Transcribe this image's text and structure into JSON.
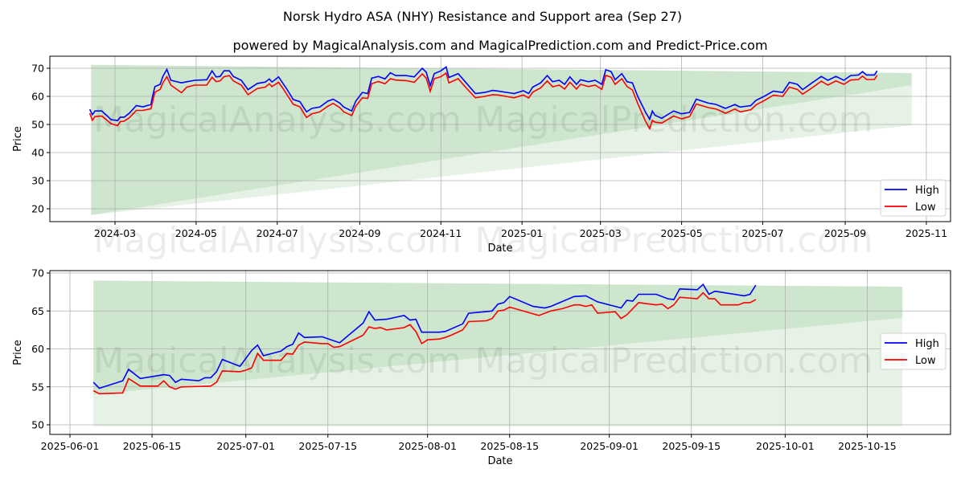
{
  "title": "Norsk Hydro ASA (NHY) Resistance and Support area (Sep 27)",
  "subtitle": "powered by MagicalAnalysis.com and MagicalPrediction.com and Predict-Price.com",
  "watermarks": [
    "MagicalAnalysis.com",
    "MagicalPrediction.com"
  ],
  "colors": {
    "high": "#0000ff",
    "low": "#ff0000",
    "band": "#008000"
  },
  "chart_data": [
    {
      "type": "line",
      "xlabel": "Date",
      "ylabel": "Price",
      "ylim": [
        15.4,
        74.3
      ],
      "xlim": [
        "2024-01-12",
        "2025-12-06"
      ],
      "yticks": [
        20,
        30,
        40,
        50,
        60,
        70
      ],
      "xticks": [
        "2024-03",
        "2024-05",
        "2024-07",
        "2024-09",
        "2024-11",
        "2025-01",
        "2025-03",
        "2025-05",
        "2025-07",
        "2025-09",
        "2025-11"
      ],
      "grid": true,
      "legend": {
        "position": "lower-right",
        "entries": [
          "High",
          "Low"
        ]
      },
      "band": {
        "start": "2024-02-12",
        "end": "2025-10-21",
        "upper": [
          71.2,
          68.3
        ],
        "mid": [
          17.8,
          64.0
        ],
        "lower": [
          17.8,
          49.7
        ]
      },
      "x": [
        "2024-02-11",
        "2024-02-13",
        "2024-02-15",
        "2024-02-20",
        "2024-02-24",
        "2024-02-27",
        "2024-03-03",
        "2024-03-05",
        "2024-03-08",
        "2024-03-12",
        "2024-03-17",
        "2024-03-22",
        "2024-03-28",
        "2024-03-29",
        "2024-03-31",
        "2024-04-04",
        "2024-04-06",
        "2024-04-09",
        "2024-04-12",
        "2024-04-20",
        "2024-04-24",
        "2024-04-30",
        "2024-05-09",
        "2024-05-13",
        "2024-05-16",
        "2024-05-19",
        "2024-05-22",
        "2024-05-26",
        "2024-05-29",
        "2024-06-04",
        "2024-06-09",
        "2024-06-16",
        "2024-06-22",
        "2024-06-25",
        "2024-06-27",
        "2024-07-02",
        "2024-07-05",
        "2024-07-08",
        "2024-07-13",
        "2024-07-18",
        "2024-07-23",
        "2024-07-27",
        "2024-08-02",
        "2024-08-08",
        "2024-08-12",
        "2024-08-17",
        "2024-08-20",
        "2024-08-26",
        "2024-08-29",
        "2024-09-03",
        "2024-09-07",
        "2024-09-10",
        "2024-09-15",
        "2024-09-20",
        "2024-09-24",
        "2024-09-28",
        "2024-10-06",
        "2024-10-12",
        "2024-10-18",
        "2024-10-21",
        "2024-10-24",
        "2024-10-27",
        "2024-11-01",
        "2024-11-05",
        "2024-11-07",
        "2024-11-14",
        "2024-11-20",
        "2024-11-27",
        "2024-12-04",
        "2024-12-10",
        "2024-12-14",
        "2024-12-26",
        "2025-01-02",
        "2025-01-06",
        "2025-01-09",
        "2025-01-15",
        "2025-01-20",
        "2025-01-24",
        "2025-01-29",
        "2025-02-02",
        "2025-02-06",
        "2025-02-11",
        "2025-02-14",
        "2025-02-20",
        "2025-02-25",
        "2025-03-02",
        "2025-03-05",
        "2025-03-09",
        "2025-03-12",
        "2025-03-17",
        "2025-03-21",
        "2025-03-25",
        "2025-03-29",
        "2025-04-04",
        "2025-04-07",
        "2025-04-09",
        "2025-04-11",
        "2025-04-16",
        "2025-04-25",
        "2025-04-28",
        "2025-05-01",
        "2025-05-07",
        "2025-05-12",
        "2025-05-21",
        "2025-05-27",
        "2025-06-03",
        "2025-06-10",
        "2025-06-14",
        "2025-06-22",
        "2025-06-26",
        "2025-07-02",
        "2025-07-09",
        "2025-07-16",
        "2025-07-21",
        "2025-07-27",
        "2025-07-31",
        "2025-08-07",
        "2025-08-14",
        "2025-08-19",
        "2025-08-25",
        "2025-08-31",
        "2025-09-05",
        "2025-09-11",
        "2025-09-14",
        "2025-09-17",
        "2025-09-23",
        "2025-09-25"
      ],
      "series": [
        {
          "name": "High",
          "values": [
            55.4,
            53.5,
            54.8,
            54.8,
            53.1,
            51.7,
            51.4,
            52.6,
            52.6,
            54.1,
            56.7,
            56.3,
            57.1,
            59.5,
            63.5,
            64.3,
            67.1,
            69.6,
            65.7,
            64.8,
            65.2,
            65.7,
            65.9,
            69.1,
            66.9,
            67.1,
            69.1,
            69.1,
            67.1,
            65.7,
            62.4,
            64.6,
            65.1,
            66.2,
            65.1,
            66.9,
            64.8,
            62.7,
            58.9,
            58.1,
            54.5,
            55.7,
            56.2,
            58.3,
            59.0,
            57.6,
            56.2,
            54.8,
            58.3,
            61.4,
            61.0,
            66.5,
            67.1,
            66.2,
            68.4,
            67.4,
            67.4,
            66.9,
            70.0,
            68.6,
            63.8,
            68.1,
            69.1,
            70.5,
            66.7,
            68.1,
            64.8,
            61.0,
            61.4,
            62.1,
            61.9,
            61.0,
            62.0,
            61.0,
            63.3,
            64.8,
            67.4,
            65.2,
            65.7,
            64.3,
            66.9,
            64.3,
            65.9,
            65.2,
            65.7,
            64.3,
            69.5,
            68.8,
            65.9,
            68.1,
            65.2,
            64.8,
            60.0,
            54.3,
            51.9,
            54.8,
            53.3,
            52.2,
            54.8,
            54.3,
            53.8,
            54.3,
            59.0,
            57.6,
            57.1,
            55.7,
            57.1,
            56.2,
            56.7,
            58.6,
            60.0,
            61.9,
            61.4,
            65.0,
            64.3,
            62.4,
            64.8,
            67.1,
            65.7,
            67.1,
            65.7,
            67.4,
            67.6,
            68.8,
            67.6,
            67.6,
            69.1
          ]
        },
        {
          "name": "Low",
          "values": [
            54.0,
            51.5,
            52.8,
            53.0,
            51.5,
            50.3,
            49.6,
            51.0,
            51.2,
            52.5,
            55.0,
            55.0,
            55.6,
            57.5,
            61.5,
            62.5,
            64.8,
            67.0,
            64.0,
            61.3,
            63.3,
            64.0,
            64.0,
            66.8,
            65.3,
            65.5,
            67.0,
            67.4,
            65.5,
            64.0,
            60.6,
            62.8,
            63.3,
            64.5,
            63.5,
            65.0,
            63.0,
            60.8,
            57.2,
            56.3,
            52.5,
            53.8,
            54.5,
            56.5,
            57.5,
            56.0,
            54.5,
            53.2,
            56.5,
            59.5,
            59.3,
            64.5,
            65.3,
            64.5,
            66.3,
            65.8,
            65.6,
            65.0,
            68.0,
            66.5,
            61.8,
            66.3,
            67.0,
            68.3,
            64.8,
            66.3,
            63.0,
            59.5,
            60.0,
            60.6,
            60.5,
            59.5,
            60.5,
            59.4,
            61.5,
            63.0,
            65.5,
            63.4,
            64.0,
            62.6,
            65.0,
            62.6,
            64.3,
            63.5,
            64.0,
            62.5,
            67.5,
            66.8,
            64.3,
            66.3,
            63.5,
            62.3,
            57.5,
            51.0,
            48.5,
            51.5,
            50.8,
            50.5,
            53.0,
            52.5,
            52.0,
            52.8,
            57.3,
            56.0,
            55.5,
            54.0,
            55.5,
            54.5,
            55.2,
            57.0,
            58.5,
            60.4,
            60.0,
            63.3,
            62.5,
            60.8,
            63.0,
            65.4,
            64.0,
            65.5,
            64.3,
            65.8,
            66.0,
            67.2,
            66.0,
            66.0,
            67.5
          ]
        }
      ]
    },
    {
      "type": "line",
      "xlabel": "Date",
      "ylabel": "Price",
      "ylim": [
        48.7,
        70.3
      ],
      "xlim": [
        "2025-05-29",
        "2025-10-31"
      ],
      "yticks": [
        50,
        55,
        60,
        65,
        70
      ],
      "xticks": [
        "2025-06-01",
        "2025-06-15",
        "2025-07-01",
        "2025-07-15",
        "2025-08-01",
        "2025-08-15",
        "2025-09-01",
        "2025-09-15",
        "2025-10-01",
        "2025-10-15"
      ],
      "grid": true,
      "legend": {
        "position": "center-right",
        "entries": [
          "High",
          "Low"
        ]
      },
      "band": {
        "start": "2025-06-05",
        "end": "2025-10-21",
        "upper": [
          69.0,
          68.2
        ],
        "mid": [
          54.0,
          64.1
        ],
        "lower": [
          49.8,
          49.8
        ]
      },
      "series": [
        {
          "name": "High",
          "x": [
            "2025-06-05",
            "2025-06-06",
            "2025-06-10",
            "2025-06-11",
            "2025-06-13",
            "2025-06-17",
            "2025-06-18",
            "2025-06-19",
            "2025-06-20",
            "2025-06-23",
            "2025-06-24",
            "2025-06-25",
            "2025-06-26",
            "2025-06-27",
            "2025-06-30",
            "2025-07-02",
            "2025-07-03",
            "2025-07-04",
            "2025-07-07",
            "2025-07-08",
            "2025-07-09",
            "2025-07-10",
            "2025-07-11",
            "2025-07-14",
            "2025-07-17",
            "2025-07-21",
            "2025-07-22",
            "2025-07-23",
            "2025-07-25",
            "2025-07-28",
            "2025-07-29",
            "2025-07-30",
            "2025-07-31",
            "2025-08-03",
            "2025-08-04",
            "2025-08-07",
            "2025-08-08",
            "2025-08-12",
            "2025-08-13",
            "2025-08-14",
            "2025-08-15",
            "2025-08-19",
            "2025-08-21",
            "2025-08-22",
            "2025-08-26",
            "2025-08-28",
            "2025-08-30",
            "2025-09-03",
            "2025-09-04",
            "2025-09-05",
            "2025-09-06",
            "2025-09-09",
            "2025-09-11",
            "2025-09-12",
            "2025-09-13",
            "2025-09-16",
            "2025-09-17",
            "2025-09-18",
            "2025-09-19",
            "2025-09-24",
            "2025-09-25",
            "2025-09-26"
          ],
          "values": [
            55.6,
            54.8,
            55.8,
            57.3,
            56.1,
            56.6,
            56.5,
            55.6,
            56.0,
            55.8,
            56.2,
            56.2,
            57.0,
            58.6,
            57.7,
            59.8,
            60.5,
            59.1,
            59.7,
            60.3,
            60.6,
            62.1,
            61.5,
            61.6,
            60.8,
            63.4,
            64.9,
            63.8,
            63.9,
            64.4,
            63.8,
            63.9,
            62.2,
            62.2,
            62.3,
            63.3,
            64.7,
            65.0,
            65.9,
            66.1,
            66.9,
            65.6,
            65.4,
            65.6,
            66.9,
            67.0,
            66.2,
            65.4,
            66.4,
            66.3,
            67.2,
            67.2,
            66.6,
            66.5,
            67.9,
            67.8,
            68.5,
            67.2,
            67.6,
            67.0,
            67.2,
            68.4
          ]
        },
        {
          "name": "Low",
          "x": [
            "2025-06-05",
            "2025-06-06",
            "2025-06-10",
            "2025-06-11",
            "2025-06-13",
            "2025-06-16",
            "2025-06-17",
            "2025-06-18",
            "2025-06-19",
            "2025-06-20",
            "2025-06-25",
            "2025-06-26",
            "2025-06-27",
            "2025-06-30",
            "2025-07-01",
            "2025-07-02",
            "2025-07-03",
            "2025-07-04",
            "2025-07-07",
            "2025-07-08",
            "2025-07-09",
            "2025-07-10",
            "2025-07-11",
            "2025-07-14",
            "2025-07-15",
            "2025-07-16",
            "2025-07-17",
            "2025-07-21",
            "2025-07-22",
            "2025-07-23",
            "2025-07-24",
            "2025-07-25",
            "2025-07-28",
            "2025-07-29",
            "2025-07-30",
            "2025-07-31",
            "2025-08-01",
            "2025-08-03",
            "2025-08-04",
            "2025-08-05",
            "2025-08-07",
            "2025-08-08",
            "2025-08-11",
            "2025-08-12",
            "2025-08-13",
            "2025-08-14",
            "2025-08-15",
            "2025-08-20",
            "2025-08-22",
            "2025-08-24",
            "2025-08-26",
            "2025-08-27",
            "2025-08-28",
            "2025-08-29",
            "2025-08-30",
            "2025-09-02",
            "2025-09-03",
            "2025-09-04",
            "2025-09-06",
            "2025-09-09",
            "2025-09-10",
            "2025-09-11",
            "2025-09-12",
            "2025-09-13",
            "2025-09-16",
            "2025-09-17",
            "2025-09-18",
            "2025-09-19",
            "2025-09-20",
            "2025-09-23",
            "2025-09-24",
            "2025-09-25",
            "2025-09-26"
          ],
          "values": [
            54.5,
            54.1,
            54.2,
            56.1,
            55.1,
            55.1,
            55.8,
            55.0,
            54.7,
            55.0,
            55.1,
            55.6,
            57.1,
            57.0,
            57.2,
            57.5,
            59.4,
            58.5,
            58.5,
            59.4,
            59.3,
            60.5,
            60.9,
            60.7,
            60.7,
            60.2,
            60.3,
            61.8,
            62.9,
            62.7,
            62.8,
            62.5,
            62.8,
            63.2,
            62.3,
            60.7,
            61.2,
            61.3,
            61.5,
            61.8,
            62.5,
            63.6,
            63.7,
            64.0,
            65.0,
            65.1,
            65.5,
            64.4,
            65.0,
            65.3,
            65.8,
            65.8,
            65.6,
            65.8,
            64.7,
            64.9,
            64.0,
            64.5,
            66.1,
            65.8,
            65.9,
            65.3,
            65.8,
            66.8,
            66.6,
            67.4,
            66.6,
            66.6,
            65.8,
            65.8,
            66.1,
            66.1,
            66.5
          ]
        }
      ]
    }
  ]
}
